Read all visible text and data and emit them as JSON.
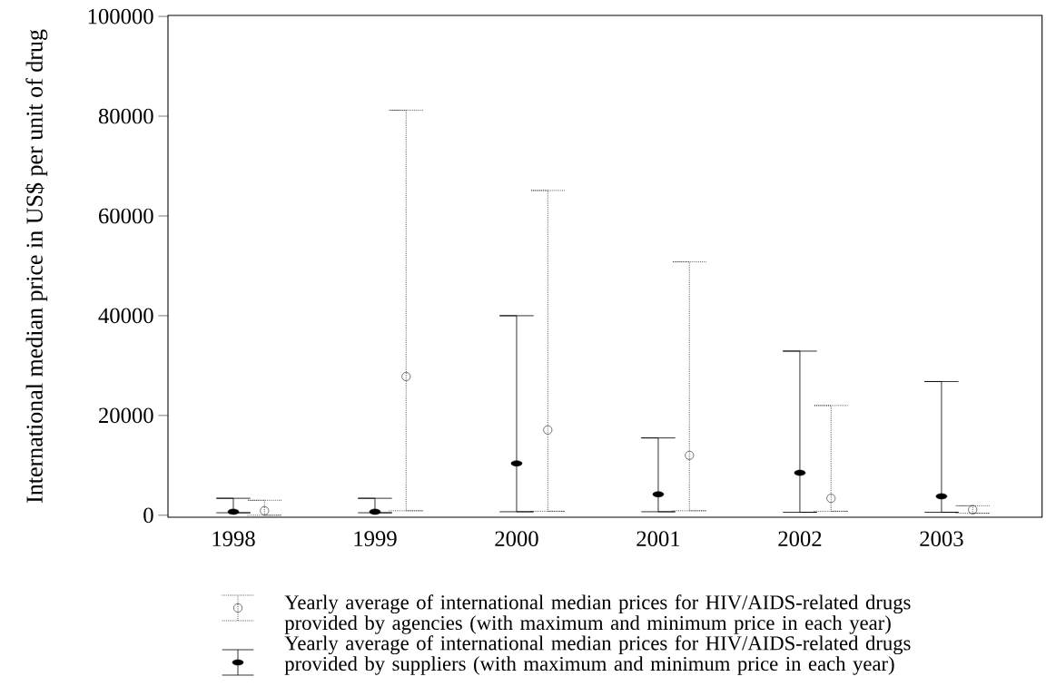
{
  "chart_data": {
    "type": "scatter",
    "ylabel": "International median price in US$ per unit of drug",
    "categories": [
      "1998",
      "1999",
      "2000",
      "2001",
      "2002",
      "2003"
    ],
    "ylim": [
      -400,
      100200
    ],
    "yticks": [
      0,
      20000,
      40000,
      60000,
      80000,
      100000
    ],
    "legend": "bottom",
    "marker": "circle",
    "series": [
      {
        "name": "Yearly average of international median prices for HIV/AIDS-related drugs provided by agencies (with maximum and minimum price in each year)",
        "color": "#000000",
        "line_style": "dotted",
        "values": [
          900,
          27800,
          17100,
          12000,
          3400,
          1100
        ],
        "errors": [
          [
            0,
            3000
          ],
          [
            900,
            81200
          ],
          [
            800,
            65100
          ],
          [
            900,
            50800
          ],
          [
            800,
            22000
          ],
          [
            400,
            1900
          ]
        ]
      },
      {
        "name": "Yearly average of international median prices for HIV/AIDS-related drugs provided by suppliers (with maximum and minimum price in each year)",
        "color": "#000000",
        "line_style": "solid",
        "values": [
          700,
          700,
          10400,
          4200,
          8500,
          3800
        ],
        "errors": [
          [
            500,
            3400
          ],
          [
            500,
            3400
          ],
          [
            700,
            40000
          ],
          [
            700,
            15500
          ],
          [
            600,
            32900
          ],
          [
            600,
            26800
          ]
        ]
      }
    ]
  }
}
